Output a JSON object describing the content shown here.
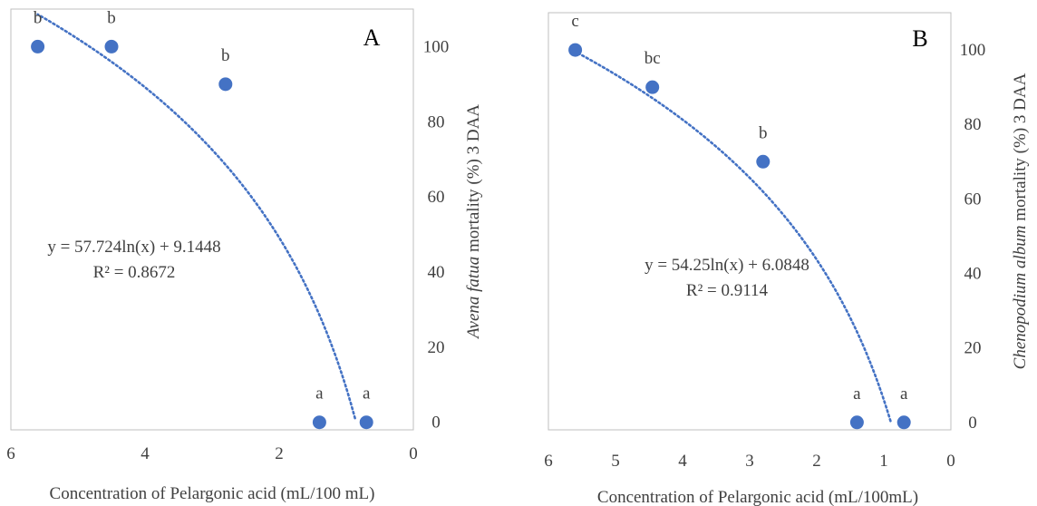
{
  "chart_data": [
    {
      "type": "scatter",
      "panel_label": "A",
      "xlabel": "Concentration of Pelargonic acid (mL/100 mL)",
      "ylabel_italic": "Avena fatua",
      "ylabel_rest": " mortality (%) 3 DAA",
      "x_reversed": true,
      "xlim": [
        0,
        6
      ],
      "ylim": [
        -2,
        110
      ],
      "x_ticks": [
        6,
        4,
        2,
        0
      ],
      "y_ticks": [
        0,
        20,
        40,
        60,
        80,
        100
      ],
      "points": [
        {
          "x": 5.6,
          "y": 100,
          "label": "b"
        },
        {
          "x": 4.5,
          "y": 100,
          "label": "b"
        },
        {
          "x": 2.8,
          "y": 90,
          "label": "b"
        },
        {
          "x": 1.4,
          "y": 0,
          "label": "a"
        },
        {
          "x": 0.7,
          "y": 0,
          "label": "a"
        }
      ],
      "trendline": {
        "type": "log",
        "a": 57.724,
        "b": 9.1448,
        "x_range": [
          0.87,
          5.6
        ]
      },
      "equation": "y = 57.724ln(x) + 9.1448",
      "r2": "R² = 0.8672",
      "marker_color": "#4472C4",
      "trend_color": "#4472C4"
    },
    {
      "type": "scatter",
      "panel_label": "B",
      "xlabel": "Concentration of Pelargonic acid (mL/100mL)",
      "ylabel_italic": "Chenopodium album",
      "ylabel_rest": " mortality (%) 3 DAA",
      "x_reversed": true,
      "xlim": [
        0,
        6
      ],
      "ylim": [
        -2,
        110
      ],
      "x_ticks": [
        6,
        5,
        4,
        3,
        2,
        1,
        0
      ],
      "y_ticks": [
        0,
        20,
        40,
        60,
        80,
        100
      ],
      "points": [
        {
          "x": 5.6,
          "y": 100,
          "label": "c"
        },
        {
          "x": 4.45,
          "y": 90,
          "label": "bc"
        },
        {
          "x": 2.8,
          "y": 70,
          "label": "b"
        },
        {
          "x": 1.4,
          "y": 0,
          "label": "a"
        },
        {
          "x": 0.7,
          "y": 0,
          "label": "a"
        }
      ],
      "trendline": {
        "type": "log",
        "a": 54.25,
        "b": 6.0848,
        "x_range": [
          0.9,
          5.6
        ]
      },
      "equation": "y = 54.25ln(x) + 6.0848",
      "r2": "R² = 0.9114",
      "marker_color": "#4472C4",
      "trend_color": "#4472C4"
    }
  ]
}
